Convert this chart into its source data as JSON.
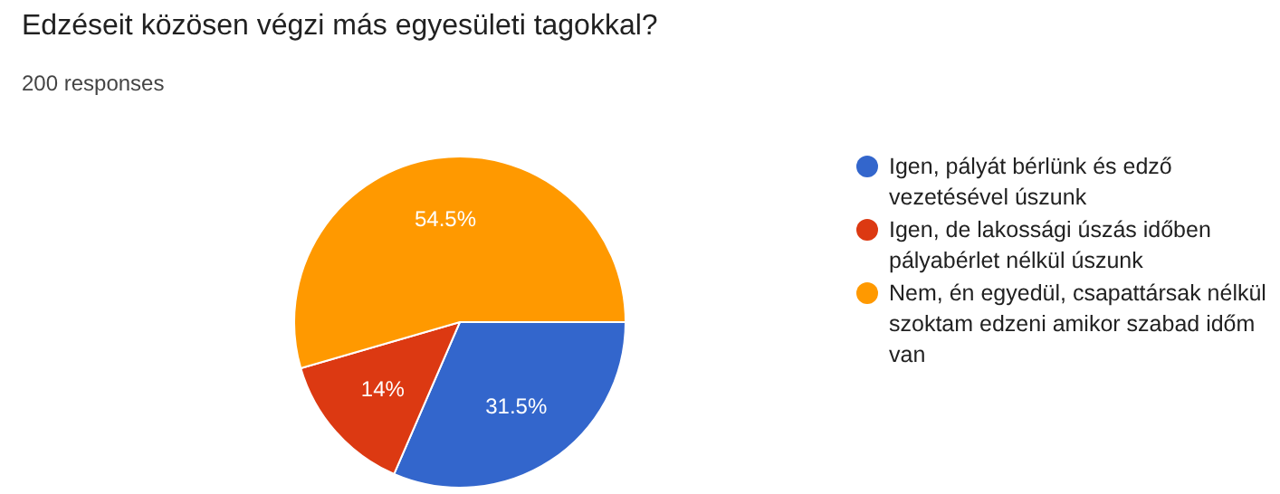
{
  "chart_data": {
    "type": "pie",
    "title": "Edzéseit közösen végzi más egyesületi tagokkal?",
    "subtitle": "200 responses",
    "categories": [
      "Igen, pályát bérlünk és edző vezetésével úszunk",
      "Igen, de lakossági úszás időben pályabérlet nélkül úszunk",
      "Nem, én egyedül, csapattársak nélkül szoktam edzeni amikor szabad időm van"
    ],
    "values": [
      31.5,
      14,
      54.5
    ],
    "colors": [
      "#3366cc",
      "#dc3912",
      "#ff9900"
    ],
    "value_labels": [
      "31.5%",
      "14%",
      "54.5%"
    ],
    "legend": "right"
  }
}
